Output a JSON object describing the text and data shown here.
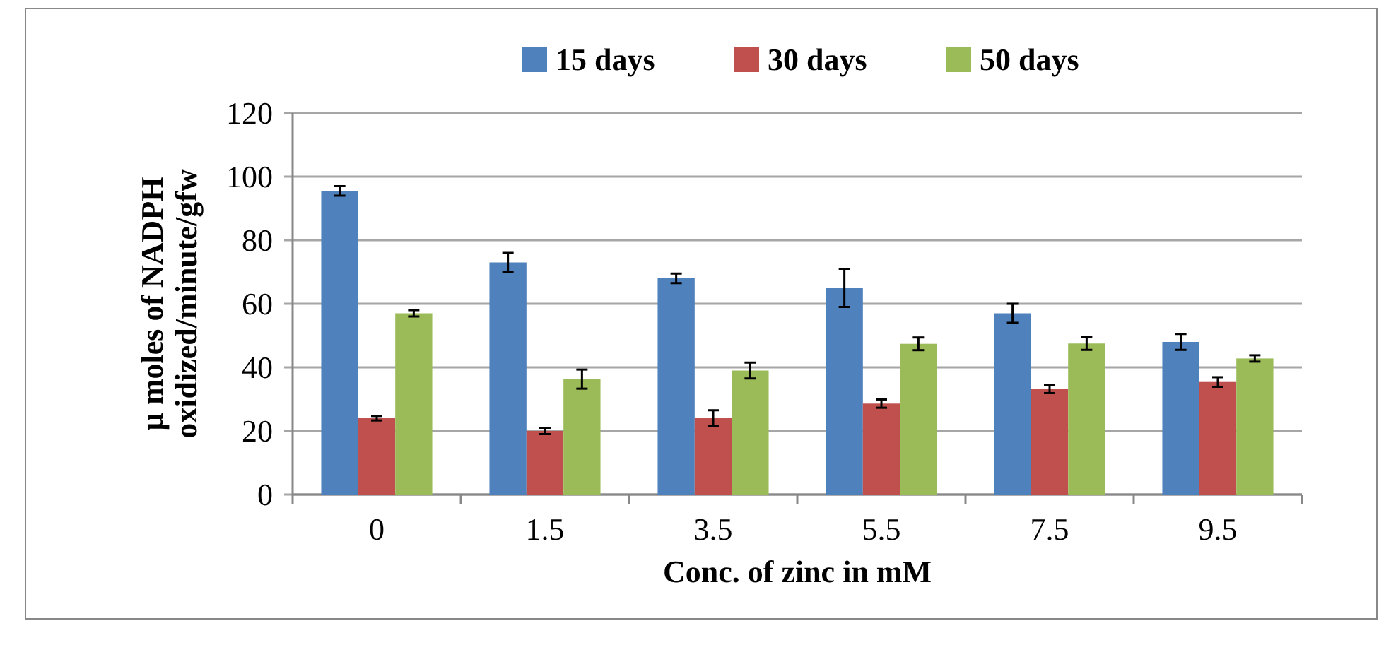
{
  "chart_data": {
    "type": "bar",
    "xlabel": "Conc. of zinc in mM",
    "ylabel": "µ moles of NADPH\noxidized/minute/gfw",
    "categories": [
      "0",
      "1.5",
      "3.5",
      "5.5",
      "7.5",
      "9.5"
    ],
    "series": [
      {
        "name": "15 days",
        "color": "#4f81bd",
        "values": [
          95.5,
          73,
          68,
          65,
          57,
          48
        ],
        "errors": [
          1.5,
          3,
          1.5,
          6,
          3,
          2.5
        ]
      },
      {
        "name": "30 days",
        "color": "#c0504d",
        "values": [
          24,
          20,
          24,
          28.6,
          33.2,
          35.4
        ],
        "errors": [
          0.7,
          1,
          2.5,
          1.3,
          1.3,
          1.5
        ]
      },
      {
        "name": "50 days",
        "color": "#9bbb59",
        "values": [
          57,
          36.3,
          39,
          47.4,
          47.5,
          42.8
        ],
        "errors": [
          1,
          3,
          2.5,
          2,
          2,
          1
        ]
      }
    ],
    "ylim": [
      0,
      120
    ],
    "yticks": [
      0,
      20,
      40,
      60,
      80,
      100,
      120
    ],
    "grid": "y",
    "legend": "top"
  }
}
